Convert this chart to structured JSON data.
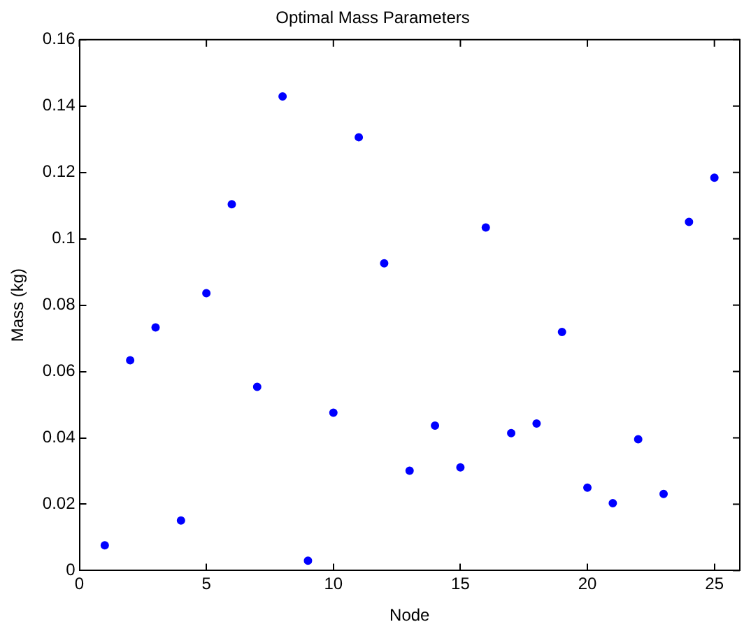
{
  "chart_data": {
    "type": "scatter",
    "title": "Optimal Mass Parameters",
    "xlabel": "Node",
    "ylabel": "Mass (kg)",
    "x": [
      1,
      2,
      3,
      4,
      5,
      6,
      7,
      8,
      9,
      10,
      11,
      12,
      13,
      14,
      15,
      16,
      17,
      18,
      19,
      20,
      21,
      22,
      23,
      24,
      25
    ],
    "series": [
      {
        "color": "#0000ff",
        "values": [
          0.0076,
          0.0634,
          0.0733,
          0.0151,
          0.0836,
          0.1104,
          0.0554,
          0.1429,
          0.003,
          0.0476,
          0.1306,
          0.0926,
          0.0301,
          0.0437,
          0.0311,
          0.1034,
          0.0414,
          0.0443,
          0.0719,
          0.025,
          0.0203,
          0.0396,
          0.0231,
          0.1051,
          0.1184
        ]
      }
    ],
    "xlim": [
      0,
      26
    ],
    "xticks": [
      0,
      5,
      10,
      15,
      20,
      25
    ],
    "ylim": [
      0,
      0.16
    ],
    "yticks": [
      0,
      0.02,
      0.04,
      0.06,
      0.08,
      0.1,
      0.12,
      0.14,
      0.16
    ],
    "marker": "circle",
    "grid": false,
    "legend": false
  }
}
